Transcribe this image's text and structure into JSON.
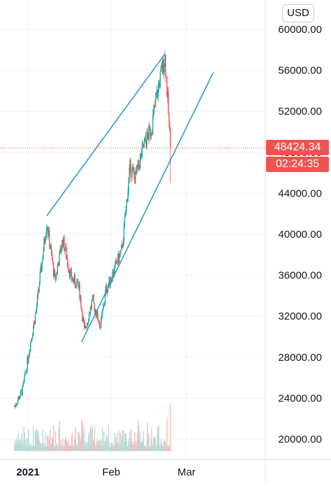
{
  "currency_button": "USD",
  "last_price_label": "48424.34",
  "countdown_label": "02:24:35",
  "colors": {
    "up": "#26a69a",
    "down": "#ef5350",
    "volume_up": "#b2dfdb",
    "volume_down": "#f8bbbb",
    "trendline": "#2f9bd4",
    "grid": "#f0f3fa",
    "price_line": "#ef5350"
  },
  "chart_data": {
    "type": "candlestick",
    "y_ticks": [
      "60000.00",
      "56000.00",
      "52000.00",
      "48000.00",
      "44000.00",
      "40000.00",
      "36000.00",
      "32000.00",
      "28000.00",
      "24000.00",
      "20000.00"
    ],
    "x_ticks": [
      "2021",
      "Feb",
      "Mar"
    ],
    "ylim": [
      18000,
      62000
    ],
    "grid": true,
    "last_price": 48424.34,
    "price_anchors": [
      [
        "2020-12-27",
        23200
      ],
      [
        "2020-12-30",
        24800
      ],
      [
        "2021-01-02",
        29500
      ],
      [
        "2021-01-04",
        32500
      ],
      [
        "2021-01-08",
        41200
      ],
      [
        "2021-01-11",
        35500
      ],
      [
        "2021-01-14",
        39500
      ],
      [
        "2021-01-17",
        35800
      ],
      [
        "2021-01-20",
        34800
      ],
      [
        "2021-01-22",
        30500
      ],
      [
        "2021-01-25",
        33500
      ],
      [
        "2021-01-28",
        31000
      ],
      [
        "2021-01-30",
        34500
      ],
      [
        "2021-02-02",
        36500
      ],
      [
        "2021-02-05",
        38500
      ],
      [
        "2021-02-08",
        46500
      ],
      [
        "2021-02-10",
        45500
      ],
      [
        "2021-02-13",
        48500
      ],
      [
        "2021-02-16",
        50500
      ],
      [
        "2021-02-19",
        55000
      ],
      [
        "2021-02-21",
        57300
      ],
      [
        "2021-02-22",
        53000
      ],
      [
        "2021-02-23",
        48424.34
      ]
    ],
    "trendlines": [
      {
        "start": [
          "2021-01-08",
          41800
        ],
        "end": [
          "2021-02-21",
          57600
        ]
      },
      {
        "start": [
          "2021-01-21",
          29500
        ],
        "end": [
          "2021-03-11",
          55800
        ]
      }
    ]
  }
}
